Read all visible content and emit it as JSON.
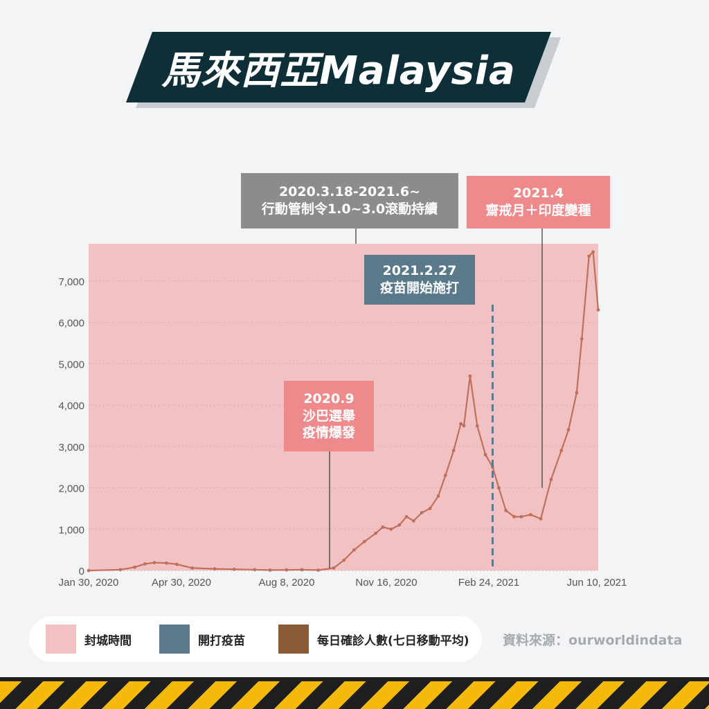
{
  "title": "馬來西亞Malaysia",
  "colors": {
    "lockdown": "#f1c1c3",
    "vaccine": "#5a7a8c",
    "cases": "#c0705a",
    "callout_gray": "#8c8c8c",
    "callout_red": "#ef8a8c",
    "callout_blue": "#5a7a8c",
    "title_bg": "#0e2f38"
  },
  "annotations": {
    "mco": {
      "line1": "2020.3.18-2021.6~",
      "line2": "行動管制令1.0~3.0滾動持續"
    },
    "ramadan": {
      "line1": "2021.4",
      "line2": "齋戒月＋印度變種"
    },
    "vaccine": {
      "line1": "2021.2.27",
      "line2": "疫苗開始施打"
    },
    "sabah": {
      "line1": "2020.9",
      "line2": "沙巴選舉",
      "line3": "疫情爆發"
    }
  },
  "legend": {
    "lockdown": "封城時間",
    "vaccine": "開打疫苗",
    "cases": "每日確診人數(七日移動平均)"
  },
  "source": "資料來源：ourworldindata",
  "chart_data": {
    "type": "line",
    "title": "",
    "xlabel": "",
    "ylabel": "",
    "ylim": [
      0,
      7900
    ],
    "x_range": [
      "2020-01-30",
      "2021-06-10"
    ],
    "yticks": [
      "0",
      "1,000",
      "2,000",
      "3,000",
      "4,000",
      "5,000",
      "6,000",
      "7,000"
    ],
    "xticks": [
      "Jan 30, 2020",
      "Apr 30, 2020",
      "Aug 8, 2020",
      "Nov 16, 2020",
      "Feb 24, 2021",
      "Jun 10, 2021"
    ],
    "grid": true,
    "shaded_period": {
      "label": "封城時間",
      "start": "2020-03-18",
      "end": "2021-06-10"
    },
    "vertical_markers": [
      {
        "label": "開打疫苗",
        "date": "2021-02-27"
      }
    ],
    "series": [
      {
        "name": "每日確診人數(七日移動平均)",
        "x": [
          "2020-01-30",
          "2020-03-01",
          "2020-03-15",
          "2020-03-25",
          "2020-04-03",
          "2020-04-15",
          "2020-04-25",
          "2020-05-10",
          "2020-06-01",
          "2020-06-20",
          "2020-07-10",
          "2020-07-25",
          "2020-08-10",
          "2020-08-25",
          "2020-09-10",
          "2020-09-25",
          "2020-10-05",
          "2020-10-15",
          "2020-10-25",
          "2020-11-05",
          "2020-11-12",
          "2020-11-20",
          "2020-11-28",
          "2020-12-05",
          "2020-12-12",
          "2020-12-20",
          "2020-12-28",
          "2021-01-05",
          "2021-01-12",
          "2021-01-20",
          "2021-01-27",
          "2021-01-30",
          "2021-02-05",
          "2021-02-12",
          "2021-02-20",
          "2021-02-27",
          "2021-03-05",
          "2021-03-12",
          "2021-03-20",
          "2021-03-27",
          "2021-04-05",
          "2021-04-15",
          "2021-04-25",
          "2021-05-05",
          "2021-05-12",
          "2021-05-20",
          "2021-05-25",
          "2021-06-01",
          "2021-06-05",
          "2021-06-10"
        ],
        "y": [
          0,
          20,
          80,
          160,
          190,
          180,
          150,
          60,
          40,
          30,
          20,
          10,
          15,
          20,
          10,
          60,
          250,
          500,
          700,
          900,
          1050,
          1000,
          1100,
          1300,
          1200,
          1400,
          1500,
          1800,
          2300,
          2900,
          3550,
          3500,
          4700,
          3500,
          2800,
          2500,
          2000,
          1450,
          1300,
          1300,
          1350,
          1250,
          2200,
          2900,
          3400,
          4300,
          5600,
          7600,
          7700,
          6300
        ]
      }
    ]
  }
}
